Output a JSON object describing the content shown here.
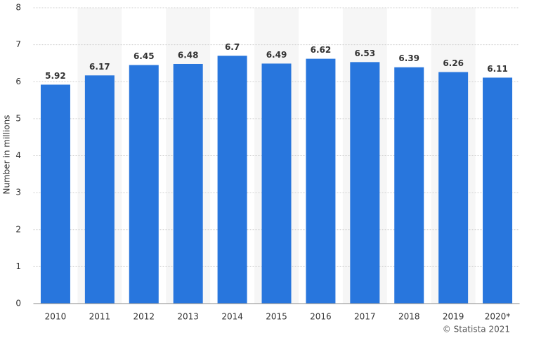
{
  "chart_data": {
    "type": "bar",
    "y_label": "Number in millions",
    "credit": "© Statista 2021",
    "categories": [
      "2010",
      "2011",
      "2012",
      "2013",
      "2014",
      "2015",
      "2016",
      "2017",
      "2018",
      "2019",
      "2020*"
    ],
    "values": [
      5.92,
      6.17,
      6.45,
      6.48,
      6.7,
      6.49,
      6.62,
      6.53,
      6.39,
      6.26,
      6.11
    ],
    "color": "#2876dd",
    "ylim": [
      0,
      8
    ],
    "yticks": [
      0,
      1,
      2,
      3,
      4,
      5,
      6,
      7,
      8
    ],
    "grid": true
  }
}
